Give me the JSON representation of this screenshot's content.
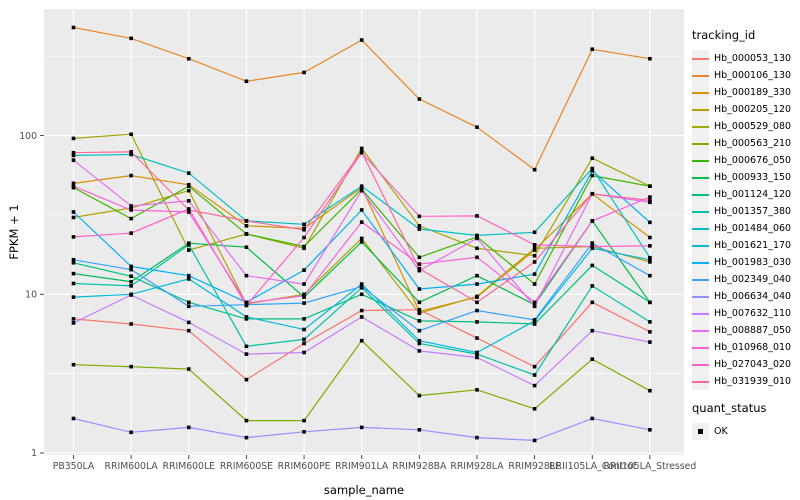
{
  "chart_data": {
    "type": "line",
    "title": "",
    "xlabel": "sample_name",
    "ylabel": "FPKM + 1",
    "y_scale": "log10",
    "ylim": [
      0.97,
      640
    ],
    "grid": true,
    "legend_position": "right",
    "panel_bg": "#EBEBEB",
    "grid_color": "#FFFFFF",
    "tick_label_color": "#4D4D4D",
    "y_ticks": [
      1,
      10,
      100
    ],
    "y_minor_ticks": [
      3.162,
      31.62,
      316.2
    ],
    "categories": [
      "PB350LA",
      "RRIM600LA",
      "RRIM600LE",
      "RRIM600SE",
      "RRIM600PE",
      "RRIM901LA",
      "RRIM928BA",
      "RRIM928LA",
      "RRIM928LE",
      "RRII105LA_Control",
      "RRII105LA_Stressed"
    ],
    "series": [
      {
        "name": "Hb_000053_130",
        "color": "#F8766D",
        "values": [
          7.0,
          6.5,
          5.9,
          2.9,
          4.9,
          7.9,
          8.0,
          5.3,
          3.5,
          8.9,
          5.8
        ]
      },
      {
        "name": "Hb_000106_130",
        "color": "#E88526",
        "values": [
          480,
          410,
          305,
          220,
          250,
          400,
          170,
          113,
          61,
          350,
          305
        ]
      },
      {
        "name": "Hb_000189_330",
        "color": "#D39200",
        "values": [
          50,
          56,
          49,
          27,
          26,
          47,
          7.8,
          9.6,
          19,
          43,
          22.8
        ]
      },
      {
        "name": "Hb_000205_120",
        "color": "#B79F00",
        "values": [
          30.5,
          35,
          45,
          8.7,
          10,
          22.5,
          7.6,
          9.7,
          19.5,
          20,
          16
        ]
      },
      {
        "name": "Hb_000529_080",
        "color": "#A3A500",
        "values": [
          96,
          102,
          19,
          24,
          19.5,
          83,
          27,
          19.5,
          17.5,
          72,
          48
        ]
      },
      {
        "name": "Hb_000563_210",
        "color": "#7CAE00",
        "values": [
          3.6,
          3.5,
          3.38,
          1.6,
          1.6,
          5.1,
          2.3,
          2.5,
          1.9,
          3.9,
          2.47
        ]
      },
      {
        "name": "Hb_000676_050",
        "color": "#39B600",
        "values": [
          47,
          30,
          48,
          24,
          20,
          46,
          17.1,
          23,
          11.6,
          56,
          48
        ]
      },
      {
        "name": "Hb_000933_150",
        "color": "#00BB4E",
        "values": [
          13.5,
          12,
          21,
          19.8,
          9.6,
          21.4,
          8.9,
          13.1,
          8.6,
          29,
          8.9
        ]
      },
      {
        "name": "Hb_001124_120",
        "color": "#00BF7D",
        "values": [
          15.8,
          13,
          8.9,
          7.0,
          7.0,
          10.0,
          6.8,
          6.7,
          6.5,
          15.2,
          8.9
        ]
      },
      {
        "name": "Hb_001357_380",
        "color": "#00C1A3",
        "values": [
          11.7,
          11.3,
          20.5,
          4.7,
          5.2,
          11.0,
          4.9,
          4.2,
          3.1,
          11.3,
          6.7
        ]
      },
      {
        "name": "Hb_001484_060",
        "color": "#00BFC4",
        "values": [
          75,
          76,
          58,
          29,
          27.6,
          48,
          25.8,
          23.5,
          24.6,
          62,
          17
        ]
      },
      {
        "name": "Hb_001621_170",
        "color": "#00BADE",
        "values": [
          9.6,
          10,
          12.5,
          7.2,
          6.0,
          11.6,
          5.1,
          4.3,
          6.8,
          19.5,
          16.5
        ]
      },
      {
        "name": "Hb_001983_030",
        "color": "#00B0F6",
        "values": [
          33,
          15,
          13.1,
          8.9,
          14.2,
          34,
          10.8,
          11.6,
          13.4,
          60,
          28.4
        ]
      },
      {
        "name": "Hb_002349_040",
        "color": "#35A2FF",
        "values": [
          16.5,
          14.3,
          8.4,
          8.6,
          8.8,
          11.2,
          5.9,
          7.9,
          6.9,
          21,
          13.1
        ]
      },
      {
        "name": "Hb_006634_040",
        "color": "#9590FF",
        "values": [
          1.65,
          1.35,
          1.45,
          1.25,
          1.36,
          1.45,
          1.4,
          1.25,
          1.2,
          1.65,
          1.4
        ]
      },
      {
        "name": "Hb_007632_110",
        "color": "#C77CFF",
        "values": [
          6.6,
          9.9,
          6.65,
          4.2,
          4.3,
          7.2,
          4.4,
          4.0,
          2.66,
          5.9,
          5.0
        ]
      },
      {
        "name": "Hb_008887_050",
        "color": "#E76BF3",
        "values": [
          70,
          36,
          38.8,
          13.1,
          11.6,
          45,
          14.1,
          22.5,
          8.4,
          43,
          38
        ]
      },
      {
        "name": "Hb_010968_010",
        "color": "#FA62DB",
        "values": [
          48,
          34,
          33,
          8.8,
          9.8,
          28.5,
          15.5,
          17.1,
          8.9,
          29,
          41
        ]
      },
      {
        "name": "Hb_027043_020",
        "color": "#FF61C9",
        "values": [
          23,
          24.3,
          34.5,
          8.5,
          22.8,
          78,
          31,
          31.2,
          20.5,
          20,
          20.2
        ]
      },
      {
        "name": "Hb_031939_010",
        "color": "#FF689E",
        "values": [
          78,
          79,
          34,
          29,
          25.5,
          79,
          14.5,
          8.9,
          16,
          43,
          39
        ]
      }
    ],
    "legend": {
      "tracking_title": "tracking_id",
      "quant_title": "quant_status",
      "quant_ok_label": "OK",
      "marker_color": "#000000"
    }
  }
}
